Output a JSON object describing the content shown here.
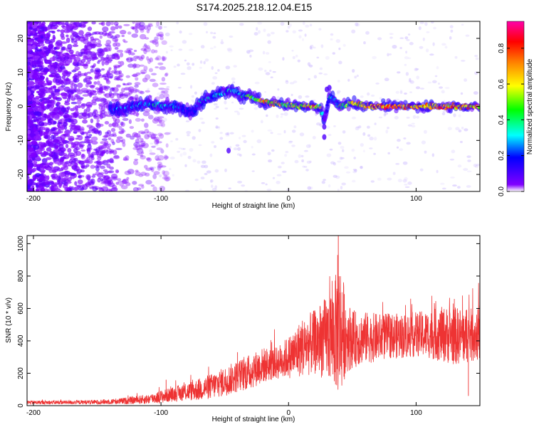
{
  "title": "S174.2025.218.12.04.E15",
  "chart_data": [
    {
      "type": "heatmap",
      "title": "S174.2025.218.12.04.E15",
      "xlabel": "Height of straight line (km)",
      "ylabel": "Frequency (Hz)",
      "xlim": [
        -205,
        150
      ],
      "ylim": [
        -25,
        25
      ],
      "x_ticks": [
        -200,
        -100,
        0,
        100
      ],
      "y_ticks": [
        -20,
        -10,
        0,
        10,
        20
      ],
      "colorbar": {
        "label": "Normalized spectral amplitude",
        "range": [
          0,
          0.95
        ],
        "ticks": [
          0.0,
          0.2,
          0.4,
          0.6,
          0.8
        ],
        "colors": [
          "#ffffff",
          "#8000ff",
          "#0000ff",
          "#00ffff",
          "#00ff00",
          "#ffff00",
          "#ff8000",
          "#ff0000",
          "#ff00aa"
        ]
      },
      "ridge": {
        "x": [
          -135,
          -120,
          -110,
          -100,
          -90,
          -80,
          -75,
          -70,
          -60,
          -50,
          -45,
          -40,
          -35,
          -30,
          -25,
          -20,
          -15,
          -10,
          -5,
          0,
          5,
          10,
          15,
          20,
          25,
          28,
          32,
          35,
          40,
          50,
          60,
          80,
          100,
          120,
          150
        ],
        "freq": [
          -1,
          0,
          1,
          0,
          0,
          -1,
          -2,
          1,
          3,
          4,
          5,
          4,
          3,
          3,
          2,
          1.5,
          1,
          1,
          0.5,
          0.5,
          0.3,
          0.2,
          0,
          0,
          -0.5,
          -4,
          3,
          2,
          0,
          1,
          0,
          0,
          0,
          0,
          0
        ],
        "amplitude": [
          0.35,
          0.35,
          0.45,
          0.45,
          0.4,
          0.3,
          0.3,
          0.4,
          0.45,
          0.45,
          0.45,
          0.4,
          0.5,
          0.6,
          0.7,
          0.85,
          0.85,
          0.8,
          0.7,
          0.7,
          0.75,
          0.8,
          0.85,
          0.9,
          0.7,
          0.25,
          0.45,
          0.4,
          0.55,
          0.75,
          0.9,
          0.95,
          0.9,
          0.9,
          0.85
        ]
      }
    },
    {
      "type": "line",
      "xlabel": "Height of straight line (km)",
      "ylabel": "SNR (10 * v/v)",
      "xlim": [
        -205,
        150
      ],
      "ylim": [
        0,
        1050
      ],
      "x_ticks": [
        -200,
        -100,
        0,
        100
      ],
      "y_ticks": [
        0,
        200,
        400,
        600,
        800,
        1000
      ],
      "color": "#ee3333",
      "envelope": {
        "x": [
          -205,
          -180,
          -150,
          -130,
          -110,
          -100,
          -90,
          -80,
          -70,
          -60,
          -50,
          -40,
          -30,
          -20,
          -10,
          0,
          5,
          10,
          20,
          30,
          35,
          38,
          40,
          45,
          50,
          60,
          70,
          80,
          90,
          100,
          110,
          120,
          130,
          140,
          150
        ],
        "mean": [
          20,
          20,
          22,
          28,
          40,
          55,
          70,
          85,
          100,
          120,
          150,
          180,
          210,
          250,
          260,
          300,
          320,
          360,
          390,
          420,
          440,
          460,
          480,
          440,
          410,
          420,
          420,
          430,
          430,
          440,
          440,
          440,
          430,
          430,
          440
        ],
        "spread": [
          12,
          12,
          14,
          20,
          30,
          40,
          45,
          55,
          70,
          80,
          90,
          100,
          110,
          110,
          100,
          130,
          160,
          180,
          200,
          260,
          320,
          380,
          450,
          240,
          180,
          160,
          150,
          140,
          140,
          140,
          150,
          170,
          180,
          170,
          160
        ]
      }
    }
  ]
}
